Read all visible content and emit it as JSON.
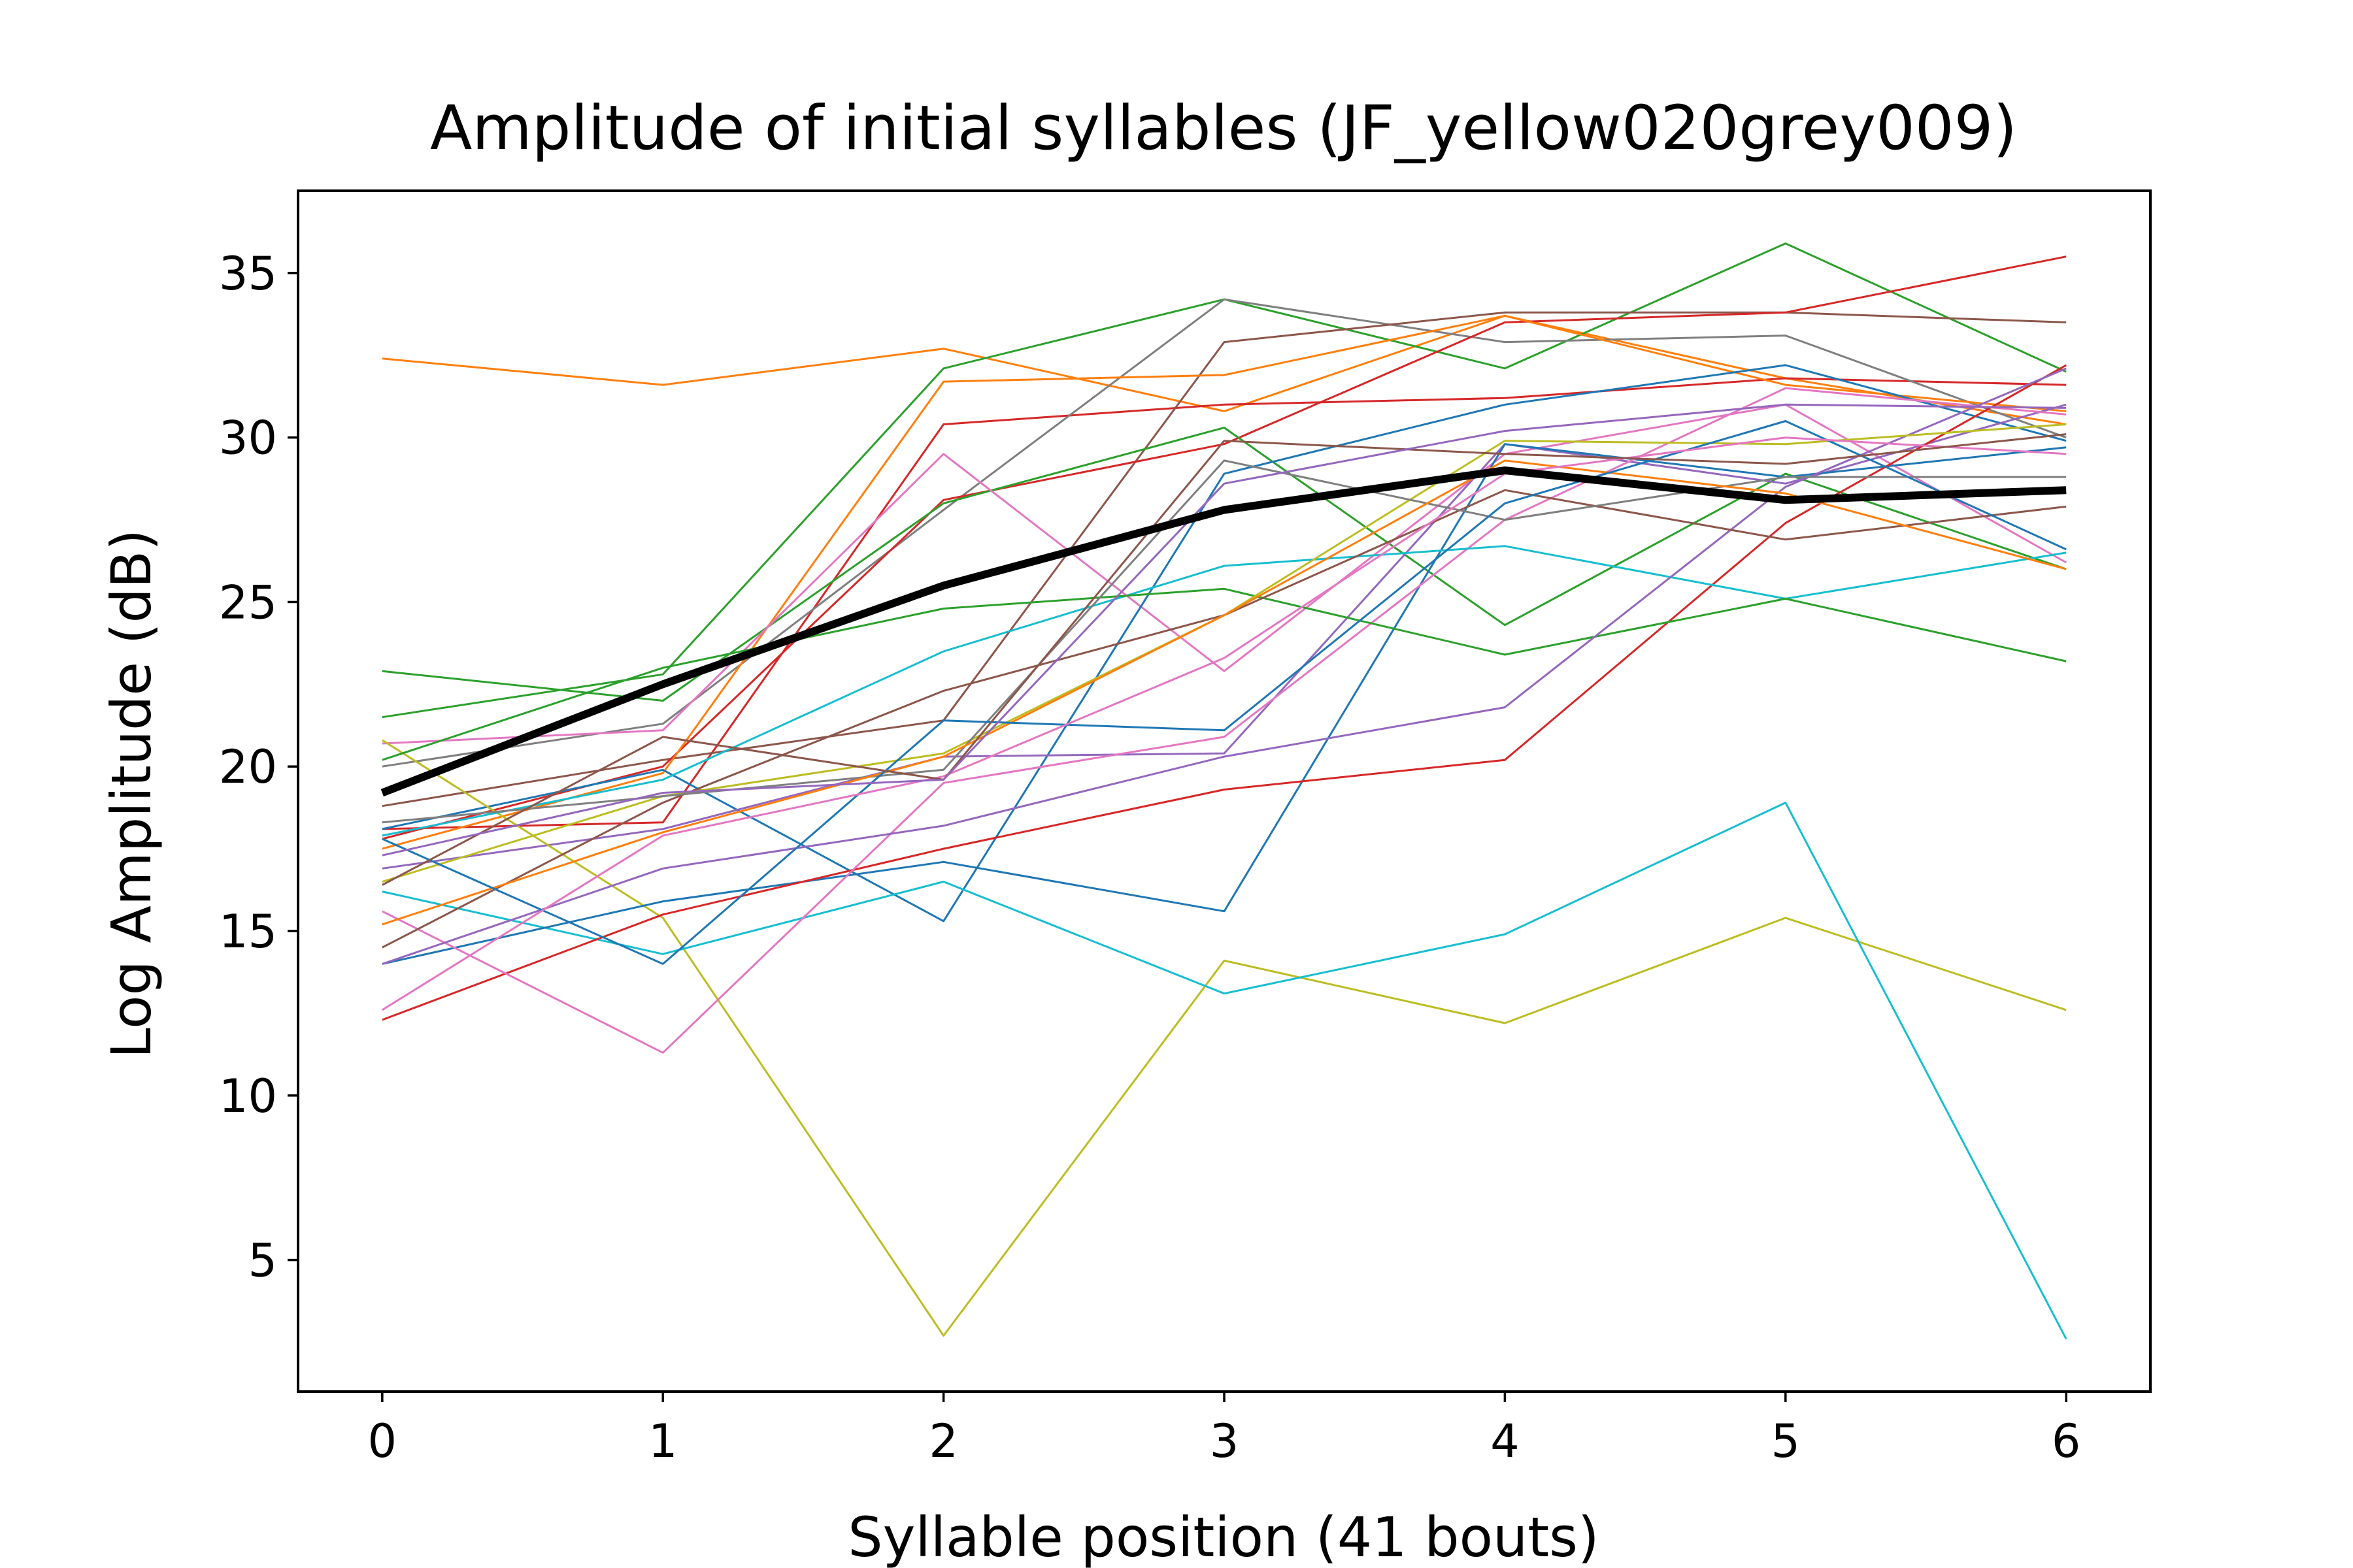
{
  "chart_data": {
    "type": "line",
    "title": "Amplitude of initial syllables (JF_yellow020grey009)",
    "xlabel": "Syllable position (41 bouts)",
    "ylabel": "Log Amplitude (dB)",
    "xlim": [
      -0.3,
      6.3
    ],
    "ylim": [
      1.0,
      37.5
    ],
    "xticks": [
      0,
      1,
      2,
      3,
      4,
      5,
      6
    ],
    "yticks": [
      5,
      10,
      15,
      20,
      25,
      30,
      35
    ],
    "grid": false,
    "legend": "none",
    "x": [
      0,
      1,
      2,
      3,
      4,
      5,
      6
    ],
    "mean_series": {
      "color": "#000000",
      "values": [
        19.2,
        22.5,
        25.5,
        27.8,
        29.0,
        28.1,
        28.4
      ]
    },
    "series": [
      {
        "color": "#ff7f0e",
        "values": [
          32.4,
          31.6,
          32.7,
          30.8,
          33.7,
          31.8,
          30.4
        ]
      },
      {
        "color": "#2ca02c",
        "values": [
          21.5,
          22.8,
          32.1,
          34.2,
          32.1,
          35.9,
          32.0
        ]
      },
      {
        "color": "#d62728",
        "values": [
          18.1,
          18.3,
          30.4,
          31.0,
          31.2,
          31.8,
          31.6
        ]
      },
      {
        "color": "#7f7f7f",
        "values": [
          20.0,
          21.3,
          27.8,
          34.2,
          32.9,
          33.1,
          30.0
        ]
      },
      {
        "color": "#8c564b",
        "values": [
          18.8,
          20.2,
          21.4,
          32.9,
          33.8,
          33.8,
          33.5
        ]
      },
      {
        "color": "#d62728",
        "values": [
          17.8,
          20.0,
          28.1,
          29.8,
          33.5,
          33.8,
          35.5
        ]
      },
      {
        "color": "#ff7f0e",
        "values": [
          17.5,
          19.8,
          31.7,
          31.9,
          33.7,
          31.6,
          30.8
        ]
      },
      {
        "color": "#2ca02c",
        "values": [
          22.9,
          22.0,
          28.0,
          30.3,
          24.3,
          28.9,
          26.0
        ]
      },
      {
        "color": "#e377c2",
        "values": [
          20.7,
          21.1,
          29.5,
          22.9,
          29.5,
          31.0,
          26.2
        ]
      },
      {
        "color": "#1f77b4",
        "values": [
          18.1,
          19.9,
          15.3,
          28.9,
          31.0,
          32.2,
          29.9
        ]
      },
      {
        "color": "#9467bd",
        "values": [
          16.9,
          18.1,
          20.3,
          20.4,
          29.8,
          28.6,
          31.0
        ]
      },
      {
        "color": "#bcbd22",
        "values": [
          20.8,
          15.4,
          2.7,
          14.1,
          12.2,
          15.4,
          12.6
        ]
      },
      {
        "color": "#17becf",
        "values": [
          16.2,
          14.3,
          16.5,
          13.1,
          14.9,
          18.9,
          2.6
        ]
      },
      {
        "color": "#1f77b4",
        "values": [
          14.0,
          15.9,
          17.1,
          15.6,
          29.8,
          28.8,
          29.7
        ]
      },
      {
        "color": "#d62728",
        "values": [
          12.3,
          15.5,
          17.5,
          19.3,
          20.2,
          27.4,
          32.2
        ]
      },
      {
        "color": "#e377c2",
        "values": [
          15.6,
          11.3,
          19.5,
          20.9,
          27.5,
          31.5,
          30.7
        ]
      },
      {
        "color": "#17becf",
        "values": [
          17.9,
          19.6,
          23.5,
          26.1,
          26.7,
          25.1,
          26.5
        ]
      },
      {
        "color": "#2ca02c",
        "values": [
          20.2,
          23.0,
          24.8,
          25.4,
          23.4,
          25.1,
          23.2
        ]
      },
      {
        "color": "#9467bd",
        "values": [
          14.0,
          16.9,
          18.2,
          20.3,
          21.8,
          28.5,
          32.1
        ]
      },
      {
        "color": "#8c564b",
        "values": [
          14.5,
          18.9,
          22.3,
          24.6,
          28.4,
          26.9,
          27.9
        ]
      },
      {
        "color": "#bcbd22",
        "values": [
          16.5,
          19.1,
          20.4,
          24.6,
          29.9,
          29.8,
          30.4
        ]
      },
      {
        "color": "#7f7f7f",
        "values": [
          18.3,
          19.1,
          19.9,
          29.3,
          27.5,
          28.8,
          28.8
        ]
      },
      {
        "color": "#ff7f0e",
        "values": [
          15.2,
          18.0,
          20.3,
          24.6,
          29.3,
          28.3,
          26.0
        ]
      },
      {
        "color": "#1f77b4",
        "values": [
          17.8,
          14.0,
          21.4,
          21.1,
          28.0,
          30.5,
          26.6
        ]
      },
      {
        "color": "#e377c2",
        "values": [
          12.6,
          17.9,
          19.7,
          23.3,
          28.9,
          30.0,
          29.5
        ]
      },
      {
        "color": "#8c564b",
        "values": [
          16.4,
          20.9,
          19.6,
          29.9,
          29.5,
          29.2,
          30.1
        ]
      },
      {
        "color": "#9467bd",
        "values": [
          17.3,
          19.2,
          19.6,
          28.6,
          30.2,
          31.0,
          30.9
        ]
      }
    ]
  }
}
